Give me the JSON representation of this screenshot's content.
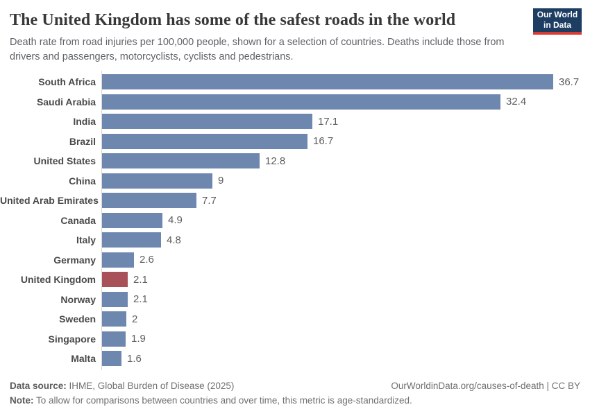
{
  "header": {
    "title": "The United Kingdom has some of the safest roads in the world",
    "subtitle": "Death rate from road injuries per 100,000 people, shown for a selection of countries. Deaths include those from\ndrivers and passengers, motorcyclists, cyclists and pedestrians.",
    "logo": {
      "line1": "Our World",
      "line2": "in Data"
    }
  },
  "chart_data": {
    "type": "bar",
    "orientation": "horizontal",
    "title": "The United Kingdom has some of the safest roads in the world",
    "xlabel": "Death rate from road injuries per 100,000 people",
    "categories": [
      "South Africa",
      "Saudi Arabia",
      "India",
      "Brazil",
      "United States",
      "China",
      "United Arab Emirates",
      "Canada",
      "Italy",
      "Germany",
      "United Kingdom",
      "Norway",
      "Sweden",
      "Singapore",
      "Malta"
    ],
    "values": [
      36.7,
      32.4,
      17.1,
      16.7,
      12.8,
      9,
      7.7,
      4.9,
      4.8,
      2.6,
      2.1,
      2.1,
      2,
      1.9,
      1.6
    ],
    "value_labels": [
      "36.7",
      "32.4",
      "17.1",
      "16.7",
      "12.8",
      "9",
      "7.7",
      "4.9",
      "4.8",
      "2.6",
      "2.1",
      "2.1",
      "2",
      "1.9",
      "1.6"
    ],
    "highlighted_category": "United Kingdom",
    "xlim": [
      0,
      36.7
    ],
    "grid": false,
    "legend": false,
    "colors": {
      "bar": "#6e87ae",
      "highlight": "#a95158",
      "axis": "#d6d6d6"
    }
  },
  "footer": {
    "datasource_label": "Data source:",
    "datasource_text": " IHME, Global Burden of Disease (2025)",
    "link_text": "OurWorldinData.org/causes-of-death | CC BY",
    "note_label": "Note:",
    "note_text": " To allow for comparisons between countries and over time, this metric is age-standardized."
  }
}
